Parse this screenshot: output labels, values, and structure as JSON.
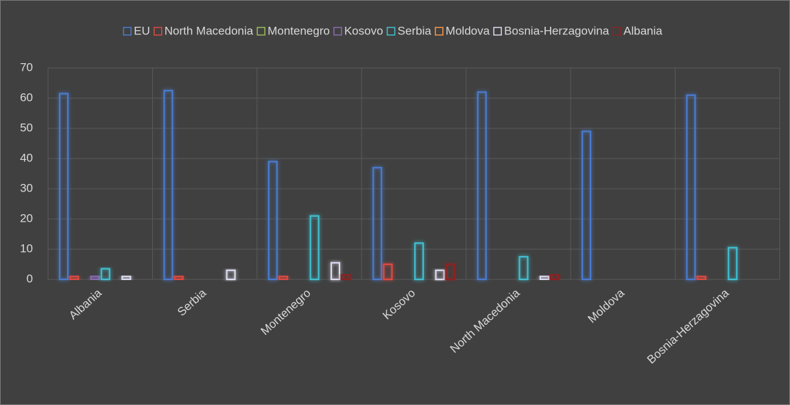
{
  "chart_data": {
    "type": "bar",
    "categories": [
      "Albania",
      "Serbia",
      "Montenegro",
      "Kosovo",
      "North Macedonia",
      "Moldova",
      "Bosnia-Herzagovina"
    ],
    "series": [
      {
        "name": "EU",
        "color": "#4a7bd0",
        "values": [
          61.5,
          62.5,
          39,
          37,
          62,
          49,
          61
        ]
      },
      {
        "name": "North Macedonia",
        "color": "#e0483f",
        "values": [
          1,
          1,
          1,
          5,
          null,
          null,
          1
        ]
      },
      {
        "name": "Montenegro",
        "color": "#9bbb59",
        "values": [
          0,
          null,
          null,
          null,
          null,
          null,
          null
        ]
      },
      {
        "name": "Kosovo",
        "color": "#8a6bb0",
        "values": [
          1,
          null,
          null,
          null,
          null,
          null,
          null
        ]
      },
      {
        "name": "Serbia",
        "color": "#3fc0d0",
        "values": [
          3.5,
          null,
          21,
          12,
          7.5,
          null,
          10.5
        ]
      },
      {
        "name": "Moldova",
        "color": "#f79646",
        "values": [
          null,
          null,
          null,
          null,
          null,
          null,
          null
        ]
      },
      {
        "name": "Bosnia-Herzagovina",
        "color": "#dcdcf0",
        "values": [
          1,
          3,
          5.5,
          3,
          1,
          null,
          null
        ]
      },
      {
        "name": "Albania",
        "color": "#8b2323",
        "values": [
          null,
          null,
          1.5,
          5,
          1.5,
          null,
          null
        ]
      }
    ],
    "ylim": [
      0,
      70
    ],
    "yticks": [
      0,
      10,
      20,
      30,
      40,
      50,
      60,
      70
    ],
    "grid": true,
    "legend": "top"
  }
}
